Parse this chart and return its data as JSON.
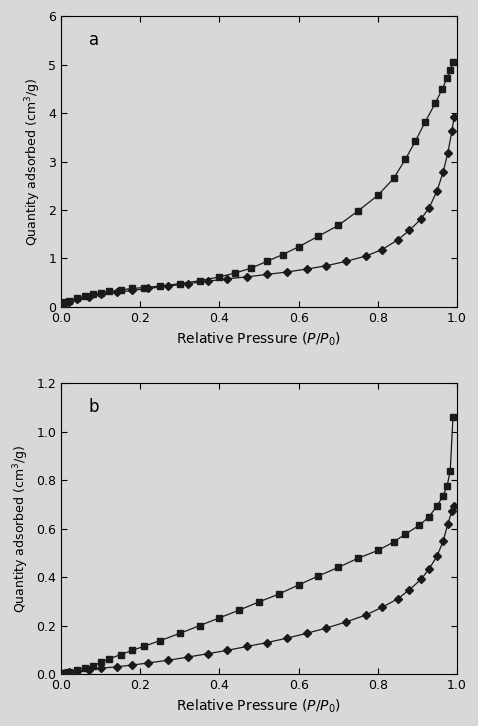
{
  "panel_a": {
    "label": "a",
    "ylim": [
      0,
      6
    ],
    "xlim": [
      0,
      1.0
    ],
    "yticks": [
      0,
      1,
      2,
      3,
      4,
      5,
      6
    ],
    "xticks": [
      0.0,
      0.2,
      0.4,
      0.6,
      0.8,
      1.0
    ],
    "series_square": {
      "x": [
        0.005,
        0.01,
        0.02,
        0.04,
        0.06,
        0.08,
        0.1,
        0.12,
        0.15,
        0.18,
        0.21,
        0.25,
        0.3,
        0.35,
        0.4,
        0.44,
        0.48,
        0.52,
        0.56,
        0.6,
        0.65,
        0.7,
        0.75,
        0.8,
        0.84,
        0.87,
        0.895,
        0.92,
        0.945,
        0.963,
        0.975,
        0.983,
        0.99
      ],
      "y": [
        0.08,
        0.1,
        0.13,
        0.18,
        0.22,
        0.26,
        0.29,
        0.32,
        0.35,
        0.38,
        0.4,
        0.43,
        0.48,
        0.54,
        0.62,
        0.7,
        0.8,
        0.94,
        1.08,
        1.24,
        1.46,
        1.68,
        1.98,
        2.3,
        2.65,
        3.05,
        3.42,
        3.82,
        4.2,
        4.5,
        4.72,
        4.88,
        5.05
      ]
    },
    "series_diamond": {
      "x": [
        0.005,
        0.01,
        0.02,
        0.04,
        0.07,
        0.1,
        0.14,
        0.18,
        0.22,
        0.27,
        0.32,
        0.37,
        0.42,
        0.47,
        0.52,
        0.57,
        0.62,
        0.67,
        0.72,
        0.77,
        0.81,
        0.85,
        0.88,
        0.91,
        0.93,
        0.95,
        0.965,
        0.977,
        0.987,
        0.993
      ],
      "y": [
        0.06,
        0.08,
        0.11,
        0.16,
        0.21,
        0.26,
        0.3,
        0.34,
        0.38,
        0.43,
        0.48,
        0.53,
        0.58,
        0.62,
        0.67,
        0.72,
        0.78,
        0.85,
        0.94,
        1.05,
        1.18,
        1.38,
        1.58,
        1.82,
        2.05,
        2.4,
        2.78,
        3.18,
        3.62,
        3.92
      ]
    }
  },
  "panel_b": {
    "label": "b",
    "ylim": [
      0,
      1.2
    ],
    "xlim": [
      0,
      1.0
    ],
    "yticks": [
      0.0,
      0.2,
      0.4,
      0.6,
      0.8,
      1.0,
      1.2
    ],
    "xticks": [
      0.0,
      0.2,
      0.4,
      0.6,
      0.8,
      1.0
    ],
    "series_square": {
      "x": [
        0.005,
        0.01,
        0.02,
        0.04,
        0.06,
        0.08,
        0.1,
        0.12,
        0.15,
        0.18,
        0.21,
        0.25,
        0.3,
        0.35,
        0.4,
        0.45,
        0.5,
        0.55,
        0.6,
        0.65,
        0.7,
        0.75,
        0.8,
        0.84,
        0.87,
        0.905,
        0.93,
        0.95,
        0.965,
        0.975,
        0.983,
        0.99
      ],
      "y": [
        0.003,
        0.005,
        0.01,
        0.018,
        0.026,
        0.034,
        0.048,
        0.062,
        0.08,
        0.098,
        0.115,
        0.138,
        0.168,
        0.2,
        0.232,
        0.264,
        0.298,
        0.33,
        0.368,
        0.405,
        0.44,
        0.478,
        0.51,
        0.545,
        0.578,
        0.614,
        0.65,
        0.695,
        0.735,
        0.775,
        0.84,
        1.06
      ]
    },
    "series_diamond": {
      "x": [
        0.005,
        0.01,
        0.02,
        0.04,
        0.07,
        0.1,
        0.14,
        0.18,
        0.22,
        0.27,
        0.32,
        0.37,
        0.42,
        0.47,
        0.52,
        0.57,
        0.62,
        0.67,
        0.72,
        0.77,
        0.81,
        0.85,
        0.88,
        0.91,
        0.93,
        0.95,
        0.965,
        0.977,
        0.987,
        0.993
      ],
      "y": [
        0.002,
        0.004,
        0.007,
        0.012,
        0.018,
        0.024,
        0.03,
        0.037,
        0.046,
        0.057,
        0.07,
        0.084,
        0.098,
        0.114,
        0.13,
        0.148,
        0.168,
        0.19,
        0.215,
        0.244,
        0.275,
        0.31,
        0.348,
        0.392,
        0.435,
        0.488,
        0.548,
        0.62,
        0.672,
        0.695
      ]
    }
  },
  "color": "#1a1a1a",
  "bg_color": "#f0f0f0",
  "marker_square": "s",
  "marker_diamond": "D",
  "markersize_a": 4.5,
  "markersize_b": 4.5,
  "linewidth": 0.9
}
